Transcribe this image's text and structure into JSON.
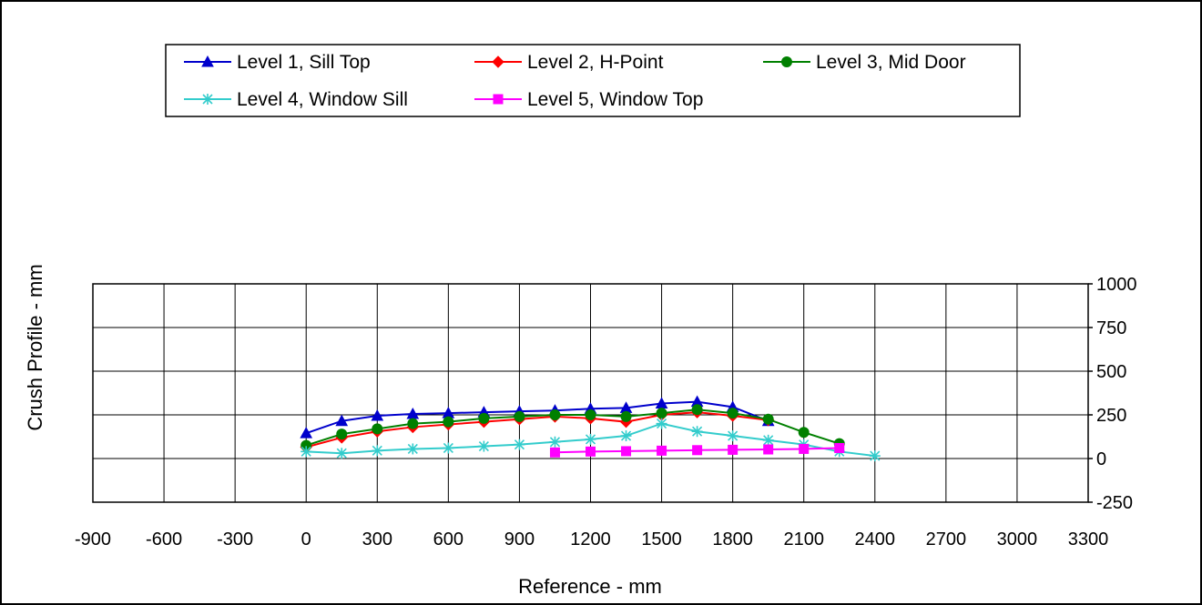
{
  "chart_data": {
    "type": "line",
    "xlabel": "Reference - mm",
    "ylabel": "Crush Profile - mm",
    "xlim": [
      -900,
      3300
    ],
    "ylim": [
      -250,
      1000
    ],
    "xticks": [
      -900,
      -600,
      -300,
      0,
      300,
      600,
      900,
      1200,
      1500,
      1800,
      2100,
      2400,
      2700,
      3000,
      3300
    ],
    "yticks": [
      -250,
      0,
      250,
      500,
      750,
      1000
    ],
    "y_axis_side": "right",
    "grid": true,
    "legend_position": "top",
    "series": [
      {
        "name": "Level 1, Sill Top",
        "color": "#0000CC",
        "marker": "triangle",
        "x": [
          0,
          150,
          300,
          450,
          600,
          750,
          900,
          1050,
          1200,
          1350,
          1500,
          1650,
          1800,
          1950
        ],
        "y": [
          145,
          215,
          245,
          255,
          260,
          265,
          270,
          275,
          285,
          290,
          315,
          325,
          295,
          215
        ]
      },
      {
        "name": "Level 2, H-Point",
        "color": "#FF0000",
        "marker": "diamond",
        "x": [
          0,
          150,
          300,
          450,
          600,
          750,
          900,
          1050,
          1200,
          1350,
          1500,
          1650,
          1800,
          1950
        ],
        "y": [
          65,
          120,
          155,
          180,
          195,
          210,
          225,
          240,
          230,
          210,
          250,
          265,
          245,
          220
        ]
      },
      {
        "name": "Level 3, Mid Door",
        "color": "#008000",
        "marker": "circle",
        "x": [
          0,
          150,
          300,
          450,
          600,
          750,
          900,
          1050,
          1200,
          1350,
          1500,
          1650,
          1800,
          1950,
          2100,
          2250
        ],
        "y": [
          75,
          140,
          170,
          200,
          210,
          230,
          240,
          250,
          250,
          240,
          260,
          280,
          260,
          225,
          150,
          85
        ]
      },
      {
        "name": "Level 4, Window Sill",
        "color": "#33CCCC",
        "marker": "asterisk",
        "x": [
          0,
          150,
          300,
          450,
          600,
          750,
          900,
          1050,
          1200,
          1350,
          1500,
          1650,
          1800,
          1950,
          2100,
          2250,
          2400
        ],
        "y": [
          40,
          30,
          45,
          55,
          60,
          70,
          80,
          95,
          110,
          130,
          200,
          155,
          130,
          105,
          80,
          40,
          15
        ]
      },
      {
        "name": "Level 5, Window Top",
        "color": "#FF00FF",
        "marker": "square",
        "x": [
          1050,
          1200,
          1350,
          1500,
          1650,
          1800,
          1950,
          2100,
          2250
        ],
        "y": [
          35,
          40,
          42,
          45,
          48,
          50,
          52,
          55,
          60
        ]
      }
    ]
  }
}
